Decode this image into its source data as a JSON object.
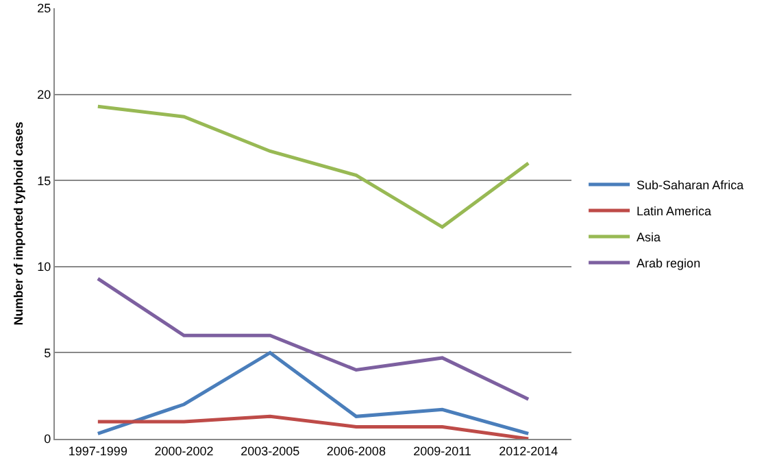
{
  "chart_data": {
    "type": "line",
    "ylabel": "Number of imported typhoid cases",
    "categories": [
      "1997-1999",
      "2000-2002",
      "2003-2005",
      "2006-2008",
      "2009-2011",
      "2012-2014"
    ],
    "series": [
      {
        "name": "Sub-Saharan Africa",
        "color": "#4a7ebb",
        "values": [
          0.3,
          2,
          5,
          1.3,
          1.7,
          0.3
        ]
      },
      {
        "name": "Latin America",
        "color": "#be4b48",
        "values": [
          1,
          1,
          1.3,
          0.7,
          0.7,
          0
        ]
      },
      {
        "name": "Asia",
        "color": "#98b954",
        "values": [
          19.3,
          18.7,
          16.7,
          15.3,
          12.3,
          16
        ]
      },
      {
        "name": "Arab region",
        "color": "#7d60a0",
        "values": [
          9.3,
          6,
          6,
          4,
          4.7,
          2.3
        ]
      }
    ],
    "ylim": [
      0,
      25
    ],
    "yticks": [
      0,
      5,
      10,
      15,
      20,
      25
    ],
    "grid": "y",
    "legend": "right",
    "marker": "none",
    "line_style": "solid"
  }
}
